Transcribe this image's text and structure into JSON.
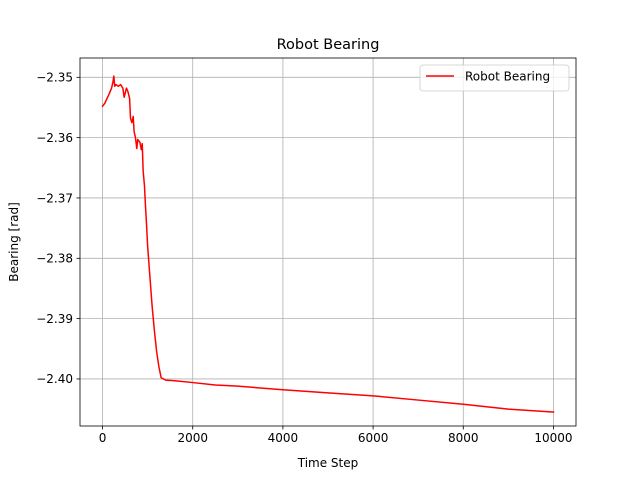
{
  "chart_data": {
    "type": "line",
    "title": "Robot Bearing",
    "xlabel": "Time Step",
    "ylabel": "Bearing [rad]",
    "xlim": [
      -500,
      10500
    ],
    "ylim": [
      -2.4078,
      -2.3468
    ],
    "xticks": [
      0,
      2000,
      4000,
      6000,
      8000,
      10000
    ],
    "xtick_labels": [
      "0",
      "2000",
      "4000",
      "6000",
      "8000",
      "10000"
    ],
    "yticks": [
      -2.35,
      -2.36,
      -2.37,
      -2.38,
      -2.39,
      -2.4
    ],
    "ytick_labels": [
      "−2.35",
      "−2.36",
      "−2.37",
      "−2.38",
      "−2.39",
      "−2.40"
    ],
    "grid": true,
    "legend_position": "top-right",
    "series": [
      {
        "name": "Robot Bearing",
        "color": "#ff0000",
        "x": [
          0,
          50,
          100,
          150,
          200,
          230,
          250,
          270,
          300,
          350,
          400,
          450,
          480,
          500,
          530,
          560,
          600,
          620,
          650,
          680,
          700,
          730,
          760,
          780,
          800,
          830,
          860,
          880,
          900,
          930,
          950,
          980,
          1000,
          1050,
          1100,
          1150,
          1200,
          1250,
          1300,
          1350,
          1400,
          1600,
          2000,
          2500,
          3000,
          4000,
          5000,
          6000,
          7000,
          8000,
          9000,
          10000
        ],
        "y": [
          -2.3548,
          -2.3543,
          -2.3535,
          -2.3527,
          -2.3518,
          -2.3508,
          -2.3498,
          -2.3515,
          -2.3512,
          -2.3515,
          -2.3512,
          -2.3518,
          -2.3533,
          -2.3527,
          -2.3518,
          -2.3523,
          -2.3535,
          -2.3568,
          -2.3575,
          -2.3565,
          -2.359,
          -2.36,
          -2.3618,
          -2.3603,
          -2.3605,
          -2.3608,
          -2.362,
          -2.361,
          -2.3655,
          -2.368,
          -2.371,
          -2.375,
          -2.378,
          -2.383,
          -2.388,
          -2.392,
          -2.3955,
          -2.398,
          -2.3998,
          -2.4,
          -2.4002,
          -2.4003,
          -2.4006,
          -2.401,
          -2.4012,
          -2.4018,
          -2.4023,
          -2.4028,
          -2.4035,
          -2.4042,
          -2.405,
          -2.4055
        ]
      }
    ]
  }
}
